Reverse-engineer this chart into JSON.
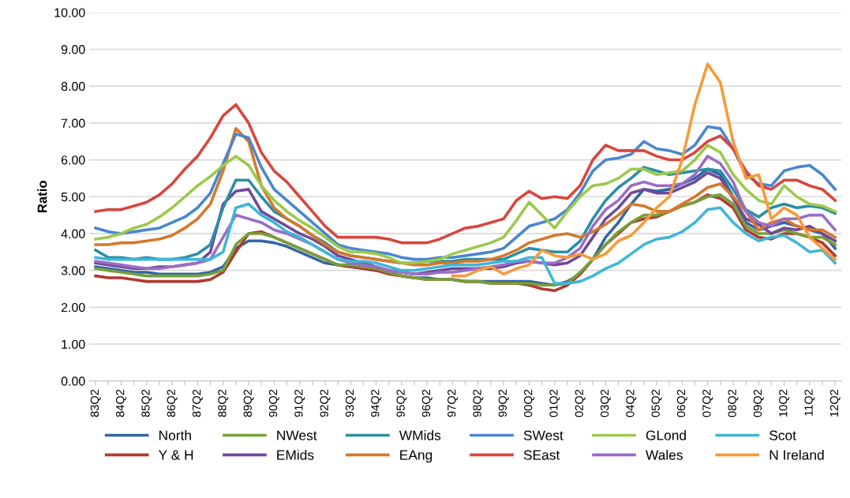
{
  "chart_data": {
    "type": "line",
    "ylabel": "Ratio",
    "grid": "y",
    "legend": "bottom",
    "marker": "none",
    "line_style": "solid",
    "ylim": [
      0,
      10
    ],
    "yticks": [
      {
        "value": 0,
        "label": "0.00"
      },
      {
        "value": 1,
        "label": "1.00"
      },
      {
        "value": 2,
        "label": "2.00"
      },
      {
        "value": 3,
        "label": "3.00"
      },
      {
        "value": 4,
        "label": "4.00"
      },
      {
        "value": 5,
        "label": "5.00"
      },
      {
        "value": 6,
        "label": "6.00"
      },
      {
        "value": 7,
        "label": "7.00"
      },
      {
        "value": 8,
        "label": "8.00"
      },
      {
        "value": 9,
        "label": "9.00"
      },
      {
        "value": 10,
        "label": "10.00"
      }
    ],
    "categories": [
      "83Q2",
      null,
      "84Q2",
      null,
      "85Q2",
      null,
      "86Q2",
      null,
      "87Q2",
      null,
      "88Q2",
      null,
      "89Q2",
      null,
      "90Q2",
      null,
      "91Q2",
      null,
      "92Q2",
      null,
      "93Q2",
      null,
      "94Q2",
      null,
      "95Q2",
      null,
      "96Q2",
      null,
      "97Q2",
      null,
      "98Q2",
      null,
      "99Q2",
      null,
      "00Q2",
      null,
      "01Q2",
      null,
      "02Q2",
      null,
      "03Q2",
      null,
      "04Q2",
      null,
      "05Q2",
      null,
      "06Q2",
      null,
      "07Q2",
      null,
      "08Q2",
      null,
      "09Q2",
      null,
      "10Q2",
      null,
      "11Q2",
      null,
      "12Q2"
    ],
    "series": [
      {
        "name": "North",
        "color": "#3465a4",
        "values": [
          3.1,
          3.05,
          3.0,
          2.95,
          2.95,
          2.9,
          2.9,
          2.9,
          2.9,
          2.95,
          3.1,
          3.6,
          3.8,
          3.8,
          3.75,
          3.65,
          3.5,
          3.35,
          3.2,
          3.15,
          3.1,
          3.05,
          3.0,
          2.95,
          2.85,
          2.8,
          2.8,
          2.75,
          2.75,
          2.7,
          2.7,
          2.7,
          2.7,
          2.7,
          2.7,
          2.65,
          2.6,
          2.7,
          2.9,
          3.3,
          3.9,
          4.3,
          4.8,
          5.2,
          5.15,
          5.2,
          5.35,
          5.5,
          5.75,
          5.6,
          5.0,
          4.3,
          4.1,
          4.2,
          4.3,
          4.2,
          4.1,
          4.0,
          3.6
        ]
      },
      {
        "name": "Y & H",
        "color": "#b03a2e",
        "values": [
          2.85,
          2.8,
          2.8,
          2.75,
          2.7,
          2.7,
          2.7,
          2.7,
          2.7,
          2.75,
          2.95,
          3.5,
          4.0,
          4.05,
          3.9,
          3.75,
          3.6,
          3.45,
          3.3,
          3.15,
          3.1,
          3.05,
          3.0,
          2.9,
          2.85,
          2.8,
          2.75,
          2.75,
          2.75,
          2.7,
          2.7,
          2.65,
          2.65,
          2.65,
          2.6,
          2.5,
          2.45,
          2.6,
          2.9,
          3.3,
          3.7,
          4.0,
          4.3,
          4.4,
          4.45,
          4.6,
          4.75,
          4.85,
          5.05,
          4.95,
          4.7,
          4.1,
          3.9,
          3.85,
          4.0,
          4.0,
          3.9,
          3.75,
          3.4
        ]
      },
      {
        "name": "NWest",
        "color": "#76a03a",
        "values": [
          3.05,
          3.0,
          2.95,
          2.9,
          2.85,
          2.85,
          2.85,
          2.85,
          2.85,
          2.9,
          3.0,
          3.7,
          4.0,
          4.0,
          3.9,
          3.75,
          3.6,
          3.45,
          3.3,
          3.15,
          3.15,
          3.1,
          3.05,
          2.95,
          2.85,
          2.8,
          2.75,
          2.75,
          2.75,
          2.7,
          2.7,
          2.65,
          2.65,
          2.65,
          2.65,
          2.6,
          2.6,
          2.65,
          2.95,
          3.3,
          3.7,
          4.05,
          4.3,
          4.5,
          4.5,
          4.6,
          4.75,
          4.85,
          5.0,
          5.05,
          4.8,
          4.2,
          4.0,
          4.0,
          4.1,
          4.0,
          3.9,
          3.9,
          3.7
        ]
      },
      {
        "name": "EMids",
        "color": "#6f4a9a",
        "values": [
          3.2,
          3.15,
          3.1,
          3.05,
          3.05,
          3.1,
          3.1,
          3.15,
          3.2,
          3.5,
          4.8,
          5.15,
          5.2,
          4.6,
          4.4,
          4.2,
          4.0,
          3.85,
          3.65,
          3.4,
          3.3,
          3.2,
          3.1,
          3.0,
          2.95,
          2.9,
          2.95,
          3.0,
          3.05,
          3.05,
          3.05,
          3.05,
          3.1,
          3.2,
          3.25,
          3.2,
          3.15,
          3.2,
          3.4,
          3.9,
          4.4,
          4.7,
          5.1,
          5.2,
          5.1,
          5.1,
          5.25,
          5.4,
          5.65,
          5.5,
          4.95,
          4.4,
          4.25,
          4.0,
          4.15,
          4.1,
          4.2,
          4.0,
          3.8
        ]
      },
      {
        "name": "WMids",
        "color": "#2b8ea5",
        "values": [
          3.55,
          3.35,
          3.35,
          3.3,
          3.35,
          3.3,
          3.3,
          3.35,
          3.45,
          3.7,
          4.7,
          5.45,
          5.45,
          5.0,
          4.6,
          4.4,
          4.2,
          3.95,
          3.75,
          3.5,
          3.4,
          3.35,
          3.3,
          3.25,
          3.2,
          3.2,
          3.25,
          3.25,
          3.25,
          3.3,
          3.3,
          3.3,
          3.3,
          3.45,
          3.6,
          3.55,
          3.5,
          3.5,
          3.8,
          4.4,
          4.9,
          5.25,
          5.5,
          5.8,
          5.7,
          5.6,
          5.65,
          5.7,
          5.75,
          5.7,
          5.2,
          4.65,
          4.45,
          4.7,
          4.8,
          4.7,
          4.75,
          4.7,
          4.55
        ]
      },
      {
        "name": "EAng",
        "color": "#d6782a",
        "values": [
          3.7,
          3.7,
          3.75,
          3.75,
          3.8,
          3.85,
          3.95,
          4.15,
          4.4,
          4.8,
          5.7,
          6.85,
          6.5,
          5.3,
          4.7,
          4.4,
          4.2,
          3.95,
          3.7,
          3.5,
          3.4,
          3.35,
          3.3,
          3.25,
          3.2,
          3.15,
          3.15,
          3.2,
          3.2,
          3.25,
          3.25,
          3.3,
          3.4,
          3.55,
          3.75,
          3.85,
          3.95,
          4.0,
          3.9,
          4.05,
          4.25,
          4.5,
          4.8,
          4.75,
          4.6,
          4.6,
          4.8,
          5.0,
          5.25,
          5.35,
          5.0,
          4.6,
          4.1,
          4.3,
          4.4,
          4.2,
          4.1,
          4.1,
          3.9
        ]
      },
      {
        "name": "SWest",
        "color": "#4a86d0",
        "values": [
          4.15,
          4.05,
          4.0,
          4.05,
          4.1,
          4.15,
          4.3,
          4.45,
          4.7,
          5.1,
          5.9,
          6.7,
          6.6,
          5.8,
          5.2,
          4.9,
          4.6,
          4.3,
          4.0,
          3.7,
          3.6,
          3.55,
          3.5,
          3.45,
          3.35,
          3.3,
          3.3,
          3.35,
          3.35,
          3.4,
          3.45,
          3.5,
          3.6,
          3.9,
          4.2,
          4.3,
          4.4,
          4.65,
          5.1,
          5.7,
          6.0,
          6.05,
          6.15,
          6.5,
          6.3,
          6.25,
          6.15,
          6.4,
          6.9,
          6.85,
          6.3,
          5.6,
          5.35,
          5.3,
          5.7,
          5.8,
          5.85,
          5.6,
          5.2
        ]
      },
      {
        "name": "SEast",
        "color": "#d9463e",
        "values": [
          4.6,
          4.65,
          4.65,
          4.75,
          4.85,
          5.05,
          5.35,
          5.75,
          6.1,
          6.6,
          7.2,
          7.5,
          7.0,
          6.2,
          5.7,
          5.4,
          5.0,
          4.6,
          4.2,
          3.9,
          3.9,
          3.9,
          3.9,
          3.85,
          3.75,
          3.75,
          3.75,
          3.85,
          4.0,
          4.15,
          4.2,
          4.3,
          4.4,
          4.9,
          5.15,
          4.95,
          5.0,
          4.95,
          5.3,
          6.0,
          6.4,
          6.25,
          6.25,
          6.25,
          6.1,
          6.0,
          6.0,
          6.2,
          6.5,
          6.65,
          6.3,
          5.7,
          5.3,
          5.2,
          5.45,
          5.45,
          5.3,
          5.2,
          4.9
        ]
      },
      {
        "name": "GLond",
        "color": "#9bc94c",
        "values": [
          3.85,
          3.9,
          4.0,
          4.15,
          4.25,
          4.45,
          4.7,
          5.0,
          5.3,
          5.55,
          5.85,
          6.1,
          5.85,
          5.3,
          4.9,
          4.6,
          4.35,
          4.15,
          3.9,
          3.65,
          3.5,
          3.5,
          3.45,
          3.35,
          3.2,
          3.2,
          3.25,
          3.3,
          3.45,
          3.55,
          3.65,
          3.75,
          3.9,
          4.35,
          4.85,
          4.5,
          4.15,
          4.6,
          5.0,
          5.3,
          5.35,
          5.5,
          5.75,
          5.75,
          5.6,
          5.65,
          5.7,
          6.0,
          6.4,
          6.2,
          5.6,
          5.2,
          4.9,
          4.8,
          5.3,
          5.0,
          4.8,
          4.75,
          4.6
        ]
      },
      {
        "name": "Wales",
        "color": "#9b6dc6",
        "values": [
          3.25,
          3.2,
          3.15,
          3.1,
          3.05,
          3.05,
          3.1,
          3.15,
          3.2,
          3.3,
          3.9,
          4.5,
          4.4,
          4.3,
          4.1,
          4.0,
          3.85,
          3.7,
          3.5,
          3.3,
          3.2,
          3.15,
          3.1,
          3.0,
          2.95,
          2.9,
          2.9,
          2.95,
          2.95,
          3.0,
          3.05,
          3.1,
          3.15,
          3.25,
          3.25,
          3.2,
          3.2,
          3.35,
          3.6,
          4.2,
          4.65,
          4.9,
          5.3,
          5.4,
          5.3,
          5.3,
          5.35,
          5.6,
          6.1,
          5.9,
          5.4,
          4.6,
          4.3,
          4.2,
          4.4,
          4.4,
          4.5,
          4.5,
          4.1
        ]
      },
      {
        "name": "Scot",
        "color": "#3fb6d8",
        "values": [
          3.35,
          3.3,
          3.3,
          3.3,
          3.3,
          3.3,
          3.3,
          3.3,
          3.3,
          3.3,
          3.5,
          4.7,
          4.8,
          4.5,
          4.3,
          4.05,
          3.9,
          3.7,
          3.5,
          3.3,
          3.25,
          3.25,
          3.2,
          3.1,
          3.0,
          3.0,
          3.05,
          3.1,
          3.15,
          3.15,
          3.15,
          3.2,
          3.25,
          3.25,
          3.35,
          3.35,
          2.65,
          2.65,
          2.7,
          2.85,
          3.05,
          3.2,
          3.45,
          3.7,
          3.85,
          3.9,
          4.05,
          4.3,
          4.65,
          4.7,
          4.3,
          4.0,
          3.8,
          3.9,
          3.95,
          3.75,
          3.5,
          3.55,
          3.2
        ]
      },
      {
        "name": "N Ireland",
        "color": "#f79a3a",
        "values": [
          null,
          null,
          null,
          null,
          null,
          null,
          null,
          null,
          null,
          null,
          null,
          null,
          null,
          null,
          null,
          null,
          null,
          null,
          null,
          null,
          null,
          null,
          null,
          null,
          null,
          null,
          null,
          null,
          2.85,
          2.85,
          3.0,
          3.1,
          2.9,
          3.05,
          3.15,
          3.55,
          3.4,
          3.35,
          3.45,
          3.3,
          3.45,
          3.8,
          3.95,
          4.3,
          4.7,
          5.0,
          6.0,
          7.5,
          8.6,
          8.1,
          6.5,
          5.5,
          5.6,
          4.4,
          4.7,
          4.5,
          3.9,
          3.6,
          3.3
        ]
      }
    ]
  }
}
